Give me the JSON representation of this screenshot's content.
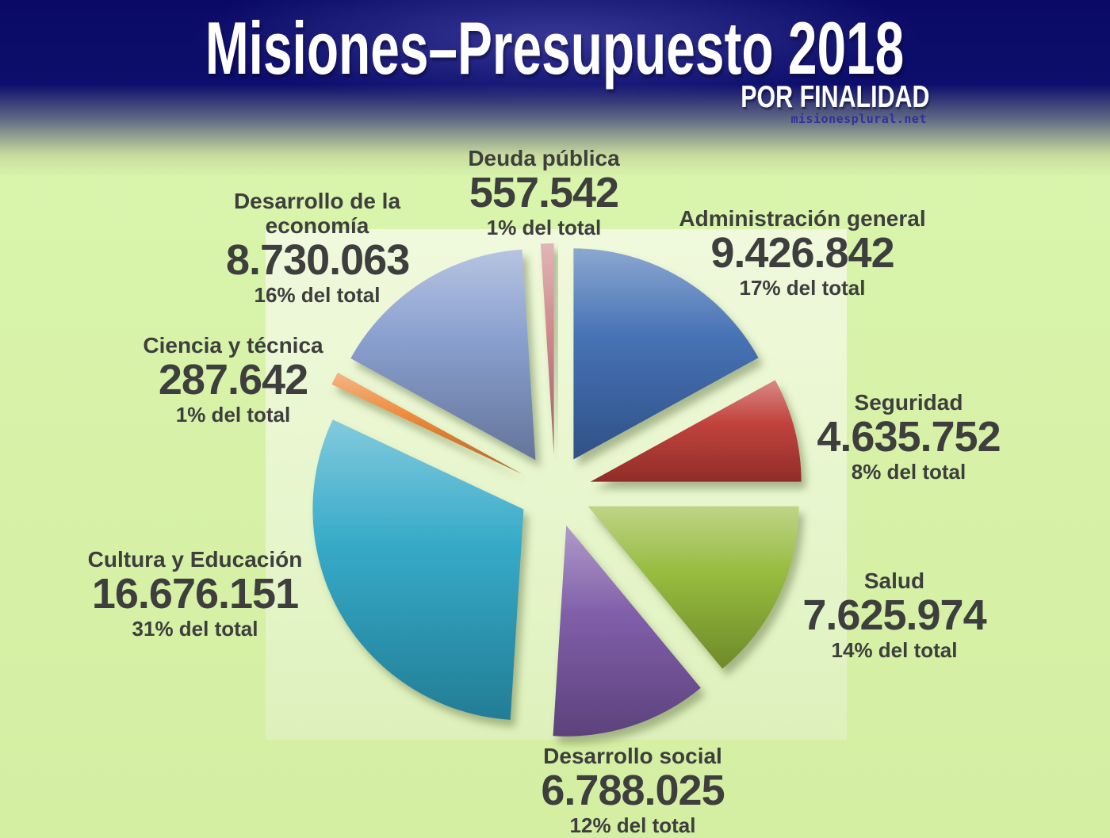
{
  "header": {
    "title": "Misiones–Presupuesto 2018",
    "subtitle": "POR FINALIDAD",
    "credit": "misionesplural.net"
  },
  "theme": {
    "header_bg": "#0d0d6b",
    "header_text": "#ffffff",
    "page_bg": "#d7f2a7",
    "plot_bg": "#e7f6cd",
    "label_text": "#3e3e3e",
    "credit_text": "#31319b"
  },
  "chart_data": {
    "type": "pie",
    "title": "Misiones–Presupuesto 2018",
    "subtitle": "POR FINALIDAD",
    "legend_position": "none",
    "labels_style": "outside-callouts",
    "start_angle_deg": 0,
    "direction": "clockwise",
    "exploded": true,
    "slices": [
      {
        "label": "Administración general",
        "value": 9426842,
        "value_label": "9.426.842",
        "percent": 17,
        "percent_label": "17% del total",
        "color": "#3e6cb2"
      },
      {
        "label": "Seguridad",
        "value": 4635752,
        "value_label": "4.635.752",
        "percent": 8,
        "percent_label": "8% del total",
        "color": "#bf3b35"
      },
      {
        "label": "Salud",
        "value": 7625974,
        "value_label": "7.625.974",
        "percent": 14,
        "percent_label": "14% del total",
        "color": "#92b836"
      },
      {
        "label": "Desarrollo social",
        "value": 6788025,
        "value_label": "6.788.025",
        "percent": 12,
        "percent_label": "12% del total",
        "color": "#7b58a5"
      },
      {
        "label": "Cultura y Educación",
        "value": 16676151,
        "value_label": "16.676.151",
        "percent": 31,
        "percent_label": "31% del total",
        "color": "#2ea6c6"
      },
      {
        "label": "Ciencia y técnica",
        "value": 287642,
        "value_label": "287.642",
        "percent": 1,
        "percent_label": "1% del total",
        "color": "#ec8634"
      },
      {
        "label": "Desarrollo de la economía",
        "value": 8730063,
        "value_label": "8.730.063",
        "percent": 16,
        "percent_label": "16% del total",
        "color": "#859ccd"
      },
      {
        "label": "Deuda pública",
        "value": 557542,
        "value_label": "557.542",
        "percent": 1,
        "percent_label": "1% del total",
        "color": "#cd8487"
      }
    ]
  }
}
